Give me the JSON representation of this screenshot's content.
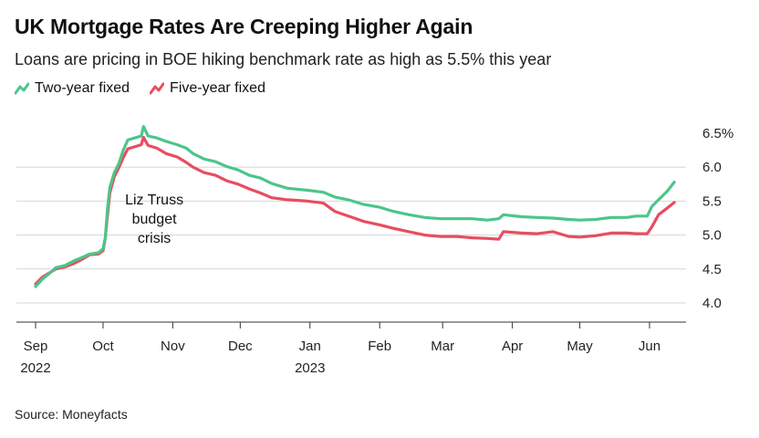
{
  "title": "UK Mortgage Rates Are Creeping Higher Again",
  "subtitle": "Loans are pricing in BOE hiking benchmark rate as high as 5.5% this year",
  "source": "Source: Moneyfacts",
  "chart_data": {
    "type": "line",
    "title": "UK Mortgage Rates Are Creeping Higher Again",
    "subtitle": "Loans are pricing in BOE hiking benchmark rate as high as 5.5% this year",
    "xlabel": "",
    "ylabel": "",
    "x_range": [
      "2022-09-01",
      "2023-06-16"
    ],
    "ylim": [
      3.8,
      6.55
    ],
    "y_ticks": [
      {
        "value": 6.5,
        "label": "6.5%"
      },
      {
        "value": 6.0,
        "label": "6.0"
      },
      {
        "value": 5.5,
        "label": "5.5"
      },
      {
        "value": 5.0,
        "label": "5.0"
      },
      {
        "value": 4.5,
        "label": "4.5"
      },
      {
        "value": 4.0,
        "label": "4.0"
      }
    ],
    "gridlines": true,
    "y_axis_position": "right",
    "legend_position": "top-left",
    "x_ticks": [
      {
        "date": "2022-09-01",
        "label": "Sep",
        "sublabel": "2022"
      },
      {
        "date": "2022-10-01",
        "label": "Oct",
        "sublabel": ""
      },
      {
        "date": "2022-11-01",
        "label": "Nov",
        "sublabel": ""
      },
      {
        "date": "2022-12-01",
        "label": "Dec",
        "sublabel": ""
      },
      {
        "date": "2023-01-01",
        "label": "Jan",
        "sublabel": "2023"
      },
      {
        "date": "2023-02-01",
        "label": "Feb",
        "sublabel": ""
      },
      {
        "date": "2023-03-01",
        "label": "Mar",
        "sublabel": ""
      },
      {
        "date": "2023-04-01",
        "label": "Apr",
        "sublabel": ""
      },
      {
        "date": "2023-05-01",
        "label": "May",
        "sublabel": ""
      },
      {
        "date": "2023-06-01",
        "label": "Jun",
        "sublabel": ""
      }
    ],
    "annotations": [
      {
        "text_lines": [
          "Liz Truss",
          "budget",
          "crisis"
        ],
        "date": "2022-10-12",
        "value": 5.4
      }
    ],
    "series": [
      {
        "name": "Two-year fixed",
        "color": "#4cc58a",
        "points": [
          [
            "2022-09-01",
            4.24
          ],
          [
            "2022-09-04",
            4.35
          ],
          [
            "2022-09-07",
            4.43
          ],
          [
            "2022-09-10",
            4.52
          ],
          [
            "2022-09-14",
            4.55
          ],
          [
            "2022-09-18",
            4.62
          ],
          [
            "2022-09-21",
            4.66
          ],
          [
            "2022-09-25",
            4.72
          ],
          [
            "2022-09-29",
            4.74
          ],
          [
            "2022-10-01",
            4.8
          ],
          [
            "2022-10-02",
            4.96
          ],
          [
            "2022-10-03",
            5.4
          ],
          [
            "2022-10-04",
            5.7
          ],
          [
            "2022-10-06",
            5.92
          ],
          [
            "2022-10-08",
            6.05
          ],
          [
            "2022-10-10",
            6.25
          ],
          [
            "2022-10-12",
            6.4
          ],
          [
            "2022-10-15",
            6.43
          ],
          [
            "2022-10-18",
            6.46
          ],
          [
            "2022-10-19",
            6.6
          ],
          [
            "2022-10-21",
            6.46
          ],
          [
            "2022-10-25",
            6.43
          ],
          [
            "2022-10-29",
            6.38
          ],
          [
            "2022-11-03",
            6.33
          ],
          [
            "2022-11-07",
            6.28
          ],
          [
            "2022-11-10",
            6.2
          ],
          [
            "2022-11-15",
            6.12
          ],
          [
            "2022-11-20",
            6.08
          ],
          [
            "2022-11-25",
            6.01
          ],
          [
            "2022-11-30",
            5.96
          ],
          [
            "2022-12-05",
            5.88
          ],
          [
            "2022-12-10",
            5.84
          ],
          [
            "2022-12-15",
            5.76
          ],
          [
            "2022-12-22",
            5.69
          ],
          [
            "2022-12-31",
            5.66
          ],
          [
            "2023-01-07",
            5.63
          ],
          [
            "2023-01-12",
            5.56
          ],
          [
            "2023-01-18",
            5.52
          ],
          [
            "2023-01-25",
            5.45
          ],
          [
            "2023-02-01",
            5.41
          ],
          [
            "2023-02-07",
            5.35
          ],
          [
            "2023-02-14",
            5.3
          ],
          [
            "2023-02-21",
            5.26
          ],
          [
            "2023-02-28",
            5.24
          ],
          [
            "2023-03-07",
            5.24
          ],
          [
            "2023-03-14",
            5.24
          ],
          [
            "2023-03-21",
            5.22
          ],
          [
            "2023-03-26",
            5.24
          ],
          [
            "2023-03-28",
            5.3
          ],
          [
            "2023-04-05",
            5.27
          ],
          [
            "2023-04-12",
            5.26
          ],
          [
            "2023-04-19",
            5.25
          ],
          [
            "2023-04-26",
            5.23
          ],
          [
            "2023-05-01",
            5.22
          ],
          [
            "2023-05-08",
            5.23
          ],
          [
            "2023-05-15",
            5.26
          ],
          [
            "2023-05-22",
            5.26
          ],
          [
            "2023-05-26",
            5.28
          ],
          [
            "2023-05-31",
            5.28
          ],
          [
            "2023-06-02",
            5.42
          ],
          [
            "2023-06-05",
            5.52
          ],
          [
            "2023-06-09",
            5.65
          ],
          [
            "2023-06-12",
            5.78
          ]
        ]
      },
      {
        "name": "Five-year fixed",
        "color": "#e84d60",
        "points": [
          [
            "2022-09-01",
            4.28
          ],
          [
            "2022-09-04",
            4.38
          ],
          [
            "2022-09-07",
            4.44
          ],
          [
            "2022-09-10",
            4.5
          ],
          [
            "2022-09-14",
            4.53
          ],
          [
            "2022-09-18",
            4.58
          ],
          [
            "2022-09-21",
            4.63
          ],
          [
            "2022-09-25",
            4.71
          ],
          [
            "2022-09-29",
            4.72
          ],
          [
            "2022-10-01",
            4.77
          ],
          [
            "2022-10-02",
            4.95
          ],
          [
            "2022-10-03",
            5.3
          ],
          [
            "2022-10-04",
            5.62
          ],
          [
            "2022-10-06",
            5.86
          ],
          [
            "2022-10-08",
            5.99
          ],
          [
            "2022-10-10",
            6.14
          ],
          [
            "2022-10-12",
            6.27
          ],
          [
            "2022-10-15",
            6.3
          ],
          [
            "2022-10-18",
            6.33
          ],
          [
            "2022-10-19",
            6.44
          ],
          [
            "2022-10-21",
            6.32
          ],
          [
            "2022-10-25",
            6.28
          ],
          [
            "2022-10-29",
            6.2
          ],
          [
            "2022-11-03",
            6.15
          ],
          [
            "2022-11-07",
            6.07
          ],
          [
            "2022-11-10",
            6.0
          ],
          [
            "2022-11-15",
            5.92
          ],
          [
            "2022-11-20",
            5.88
          ],
          [
            "2022-11-25",
            5.8
          ],
          [
            "2022-11-30",
            5.75
          ],
          [
            "2022-12-05",
            5.68
          ],
          [
            "2022-12-10",
            5.62
          ],
          [
            "2022-12-15",
            5.55
          ],
          [
            "2022-12-22",
            5.52
          ],
          [
            "2022-12-31",
            5.5
          ],
          [
            "2023-01-07",
            5.47
          ],
          [
            "2023-01-12",
            5.35
          ],
          [
            "2023-01-18",
            5.28
          ],
          [
            "2023-01-25",
            5.2
          ],
          [
            "2023-02-01",
            5.15
          ],
          [
            "2023-02-07",
            5.1
          ],
          [
            "2023-02-14",
            5.05
          ],
          [
            "2023-02-21",
            5.0
          ],
          [
            "2023-02-28",
            4.98
          ],
          [
            "2023-03-07",
            4.98
          ],
          [
            "2023-03-14",
            4.96
          ],
          [
            "2023-03-21",
            4.95
          ],
          [
            "2023-03-26",
            4.94
          ],
          [
            "2023-03-28",
            5.05
          ],
          [
            "2023-04-05",
            5.03
          ],
          [
            "2023-04-12",
            5.02
          ],
          [
            "2023-04-19",
            5.05
          ],
          [
            "2023-04-26",
            4.98
          ],
          [
            "2023-05-01",
            4.97
          ],
          [
            "2023-05-08",
            4.99
          ],
          [
            "2023-05-15",
            5.03
          ],
          [
            "2023-05-22",
            5.03
          ],
          [
            "2023-05-26",
            5.02
          ],
          [
            "2023-05-31",
            5.02
          ],
          [
            "2023-06-02",
            5.12
          ],
          [
            "2023-06-05",
            5.3
          ],
          [
            "2023-06-09",
            5.4
          ],
          [
            "2023-06-12",
            5.48
          ]
        ]
      }
    ]
  }
}
